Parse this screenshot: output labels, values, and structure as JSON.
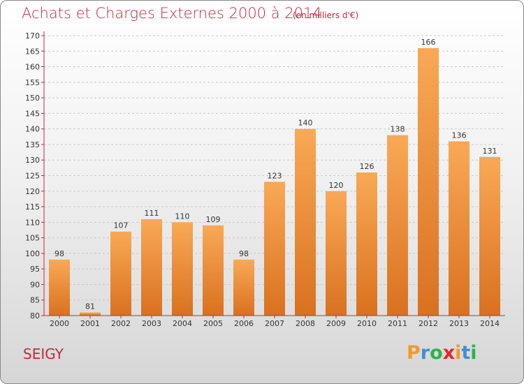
{
  "header": {
    "title": "Achats et Charges Externes 2000 à 2014",
    "unit": "(en milliers d'€)"
  },
  "footer": {
    "commune": "SEIGY",
    "brand_letters": [
      "P",
      "r",
      "o",
      "x",
      "i",
      "t",
      "i"
    ],
    "brand_colors": [
      "#f2992b",
      "#3d8fd6",
      "#2db34a",
      "#e0292f",
      "#f2992b",
      "#3d8fd6",
      "#2db34a"
    ]
  },
  "chart_data": {
    "type": "bar",
    "title": "Achats et Charges Externes 2000 à 2014",
    "subtitle": "(en milliers d'€)",
    "xlabel": "",
    "ylabel": "",
    "categories": [
      "2000",
      "2001",
      "2002",
      "2003",
      "2004",
      "2005",
      "2006",
      "2007",
      "2008",
      "2009",
      "2010",
      "2011",
      "2012",
      "2013",
      "2014"
    ],
    "values": [
      98,
      81,
      107,
      111,
      110,
      109,
      98,
      123,
      140,
      120,
      126,
      138,
      166,
      136,
      131
    ],
    "ylim": [
      80,
      170
    ],
    "yticks": [
      80,
      85,
      90,
      95,
      100,
      105,
      110,
      115,
      120,
      125,
      130,
      135,
      140,
      145,
      150,
      155,
      160,
      165,
      170
    ],
    "grid": true,
    "bar_color_top": "#f9a956",
    "bar_color_bottom": "#d9711f",
    "axis_color": "#c8273e"
  }
}
